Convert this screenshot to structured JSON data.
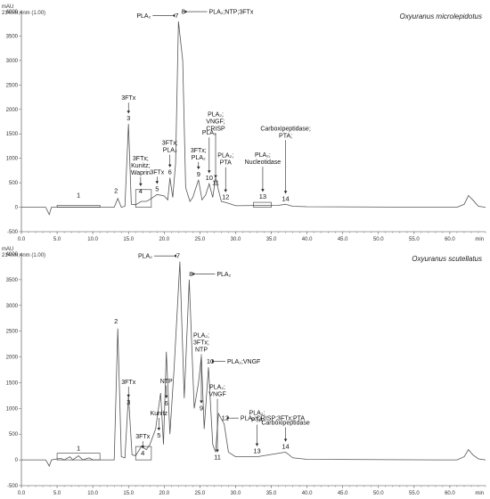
{
  "chart_data": [
    {
      "type": "line",
      "species": "Oxyuranus microlepidotus",
      "detector": "214nm,4nm (1.00)",
      "yunit": "mAU",
      "xunit": "min",
      "xlim": [
        0,
        65
      ],
      "ylim": [
        -500,
        4000
      ],
      "xticks": [
        0,
        5,
        10,
        15,
        20,
        25,
        30,
        35,
        40,
        45,
        50,
        55,
        60
      ],
      "xtick_labels": [
        "0.0",
        "5.0",
        "10.0",
        "15.0",
        "20.0",
        "25.0",
        "30.0",
        "35.0",
        "40.0",
        "45.0",
        "50.0",
        "55.0",
        "60.0"
      ],
      "yticks": [
        -500,
        0,
        500,
        1000,
        1500,
        2000,
        2500,
        3000,
        3500,
        4000
      ],
      "trace": [
        [
          0,
          0
        ],
        [
          3.4,
          0
        ],
        [
          3.9,
          -150
        ],
        [
          4.2,
          0
        ],
        [
          13.0,
          0
        ],
        [
          13.5,
          180
        ],
        [
          14.0,
          0
        ],
        [
          14.5,
          20
        ],
        [
          15.0,
          1700
        ],
        [
          15.4,
          60
        ],
        [
          16.0,
          50
        ],
        [
          16.8,
          120
        ],
        [
          17.5,
          120
        ],
        [
          18.0,
          160
        ],
        [
          19.0,
          260
        ],
        [
          20.0,
          230
        ],
        [
          20.5,
          150
        ],
        [
          20.8,
          600
        ],
        [
          21.2,
          200
        ],
        [
          21.6,
          900
        ],
        [
          22.0,
          3800
        ],
        [
          22.6,
          3000
        ],
        [
          23.0,
          400
        ],
        [
          23.6,
          120
        ],
        [
          24.0,
          200
        ],
        [
          24.8,
          560
        ],
        [
          25.3,
          150
        ],
        [
          25.8,
          250
        ],
        [
          26.3,
          480
        ],
        [
          26.8,
          200
        ],
        [
          27.2,
          600
        ],
        [
          27.6,
          350
        ],
        [
          28.0,
          120
        ],
        [
          28.8,
          90
        ],
        [
          30,
          30
        ],
        [
          36.0,
          40
        ],
        [
          37.0,
          60
        ],
        [
          38.0,
          20
        ],
        [
          40,
          10
        ],
        [
          58.5,
          0
        ],
        [
          61.0,
          0
        ],
        [
          62.0,
          60
        ],
        [
          62.6,
          240
        ],
        [
          63.2,
          150
        ],
        [
          64,
          20
        ],
        [
          65,
          0
        ]
      ],
      "fraction_boxes": [
        [
          5.0,
          11.0,
          0,
          40
        ],
        [
          16.0,
          18.2,
          0,
          360
        ],
        [
          32.5,
          35.0,
          0,
          100
        ]
      ],
      "peaks": [
        {
          "label": "1",
          "x": 8.0,
          "y": 60,
          "annotation": []
        },
        {
          "label": "2",
          "x": 13.5,
          "y": 180,
          "annotation": []
        },
        {
          "label": "3",
          "x": 15.0,
          "y": 1700,
          "annotation": [
            "3FTx"
          ]
        },
        {
          "label": "4",
          "x": 16.7,
          "y": 360,
          "annotation": [
            "3FTx;",
            "Kunitz;",
            "Waprin"
          ]
        },
        {
          "label": "5",
          "x": 19.0,
          "y": 260,
          "annotation": [
            "3FTx"
          ]
        },
        {
          "label": "6",
          "x": 20.8,
          "y": 600,
          "annotation": [
            "3FTx;",
            "PLA₂"
          ]
        },
        {
          "label": "7",
          "x": 22.0,
          "y": 3800,
          "annotation": [
            "PLA₂"
          ]
        },
        {
          "label": "8",
          "x": 22.4,
          "y": 3880,
          "annotation": [
            "PLA₂;NTP;3FTx"
          ]
        },
        {
          "label": "9",
          "x": 24.8,
          "y": 560,
          "annotation": [
            "3FTx;",
            "PLA₂"
          ]
        },
        {
          "label": "10",
          "x": 26.3,
          "y": 480,
          "annotation": [
            "PLA₂"
          ]
        },
        {
          "label": "11",
          "x": 27.2,
          "y": 600,
          "annotation": [
            "PLA₂;",
            "VNGF;",
            "CRISP"
          ]
        },
        {
          "label": "12",
          "x": 28.6,
          "y": 90,
          "annotation": [
            "PLA₂;",
            "PTA"
          ]
        },
        {
          "label": "13",
          "x": 33.8,
          "y": 100,
          "annotation": [
            "PLA₂;",
            "Nucleotidase"
          ]
        },
        {
          "label": "14",
          "x": 37.0,
          "y": 60,
          "annotation": [
            "Carboxipeptidase;",
            "PTA;"
          ]
        }
      ]
    },
    {
      "type": "line",
      "species": "Oxyuranus scutellatus",
      "detector": "214nm,4nm (1.00)",
      "yunit": "mAU",
      "xunit": "min",
      "xlim": [
        0,
        65
      ],
      "ylim": [
        -500,
        4000
      ],
      "xticks": [
        0,
        5,
        10,
        15,
        20,
        25,
        30,
        35,
        40,
        45,
        50,
        55,
        60
      ],
      "xtick_labels": [
        "0.0",
        "5.0",
        "10.0",
        "15.0",
        "20.0",
        "25.0",
        "30.0",
        "35.0",
        "40.0",
        "45.0",
        "50.0",
        "55.0",
        "60.0"
      ],
      "yticks": [
        -500,
        0,
        500,
        1000,
        1500,
        2000,
        2500,
        3000,
        3500,
        4000
      ],
      "trace": [
        [
          0,
          0
        ],
        [
          3.4,
          0
        ],
        [
          3.9,
          -120
        ],
        [
          4.2,
          0
        ],
        [
          5.5,
          30
        ],
        [
          6.0,
          0
        ],
        [
          6.8,
          60
        ],
        [
          7.2,
          0
        ],
        [
          8.0,
          80
        ],
        [
          8.6,
          0
        ],
        [
          9.5,
          40
        ],
        [
          10,
          0
        ],
        [
          13.0,
          0
        ],
        [
          13.5,
          2550
        ],
        [
          14.0,
          60
        ],
        [
          14.5,
          40
        ],
        [
          15.0,
          1250
        ],
        [
          15.5,
          100
        ],
        [
          16.0,
          80
        ],
        [
          16.8,
          260
        ],
        [
          17.5,
          200
        ],
        [
          18.0,
          300
        ],
        [
          18.8,
          600
        ],
        [
          19.5,
          1300
        ],
        [
          19.9,
          300
        ],
        [
          20.3,
          2100
        ],
        [
          20.8,
          500
        ],
        [
          21.4,
          1800
        ],
        [
          22.2,
          3850
        ],
        [
          22.8,
          1200
        ],
        [
          23.5,
          3500
        ],
        [
          24.2,
          1000
        ],
        [
          24.8,
          1500
        ],
        [
          25.2,
          2000
        ],
        [
          25.6,
          600
        ],
        [
          26.2,
          1800
        ],
        [
          26.8,
          300
        ],
        [
          27.2,
          150
        ],
        [
          27.6,
          900
        ],
        [
          28.4,
          700
        ],
        [
          29.0,
          150
        ],
        [
          30,
          60
        ],
        [
          33,
          60
        ],
        [
          37,
          150
        ],
        [
          38,
          40
        ],
        [
          40,
          10
        ],
        [
          58.5,
          0
        ],
        [
          61.0,
          0
        ],
        [
          62.0,
          60
        ],
        [
          62.6,
          200
        ],
        [
          63.2,
          100
        ],
        [
          64,
          20
        ],
        [
          65,
          0
        ]
      ],
      "fraction_boxes": [
        [
          5.0,
          11.0,
          0,
          130
        ],
        [
          16.0,
          18.2,
          0,
          260
        ]
      ],
      "peaks": [
        {
          "label": "1",
          "x": 8.0,
          "y": 80,
          "annotation": []
        },
        {
          "label": "2",
          "x": 13.5,
          "y": 2550,
          "annotation": []
        },
        {
          "label": "3",
          "x": 15.0,
          "y": 1250,
          "annotation": [
            "3FTx"
          ]
        },
        {
          "label": "4",
          "x": 17.0,
          "y": 260,
          "annotation": [
            "3FTx"
          ]
        },
        {
          "label": "5",
          "x": 19.5,
          "y": 1300,
          "annotation": [
            "Kunitz"
          ]
        },
        {
          "label": "6",
          "x": 20.3,
          "y": 2100,
          "annotation": [
            "NTP"
          ]
        },
        {
          "label": "7",
          "x": 22.2,
          "y": 3850,
          "annotation": [
            "PLA₂"
          ]
        },
        {
          "label": "8",
          "x": 23.5,
          "y": 3500,
          "annotation": [
            "PLA₂"
          ]
        },
        {
          "label": "9",
          "x": 25.2,
          "y": 2000,
          "annotation": [
            "PLA₂;",
            "3FTx;",
            "NTP"
          ]
        },
        {
          "label": "10",
          "x": 26.2,
          "y": 1800,
          "annotation": [
            "PLA₂;VNGF"
          ]
        },
        {
          "label": "11",
          "x": 27.2,
          "y": 150,
          "annotation": [
            "PLA₂;",
            "VNGF"
          ]
        },
        {
          "label": "12",
          "x": 28.3,
          "y": 700,
          "annotation": [
            "PLA₂;CRISP;3FTx;PTA"
          ]
        },
        {
          "label": "13",
          "x": 33.0,
          "y": 60,
          "annotation": [
            "PLA₂;",
            "PTA"
          ]
        },
        {
          "label": "14",
          "x": 37.0,
          "y": 150,
          "annotation": [
            "Carboxipeptidase"
          ]
        }
      ]
    }
  ]
}
